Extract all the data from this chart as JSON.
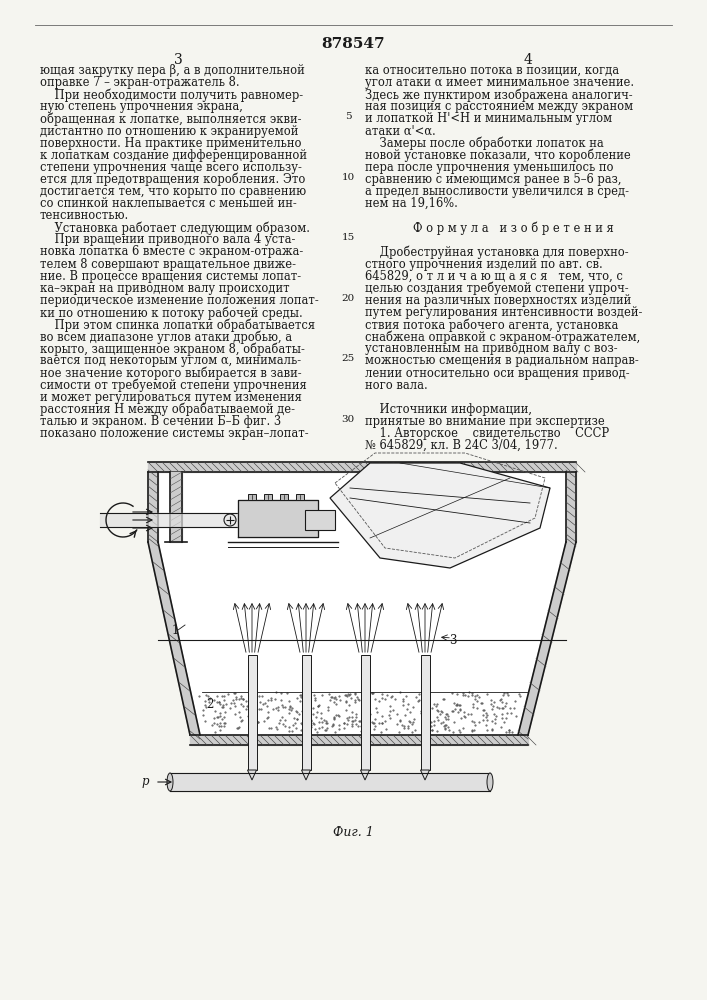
{
  "patent_number": "878547",
  "background_color": "#f5f5f0",
  "text_color": "#1a1a1a",
  "font_size_body": 8.3,
  "font_size_page_num": 10,
  "font_size_patent": 11,
  "left_col": [
    "ющая закрутку пера β, а в дополнительной",
    "оправке 7 – экран-отражатель 8.",
    "    При необходимости получить равномер-",
    "ную степень упрочнения экрана,",
    "обращенная к лопатке, выполняется экви-",
    "дистантно по отношению к экранируемой",
    "поверхности. На практике применительно",
    "к лопаткам создание дифференцированной",
    "степени упрочнения чаще всего использу-",
    "ется для предотвращения коробления. Это",
    "достигается тем, что корыто по сравнению",
    "со спинкой наклепывается с меньшей ин-",
    "тенсивностью.",
    "    Установка работает следующим образом.",
    "    При вращении приводного вала 4 уста-",
    "новка лопатка 6 вместе с экраном-отража-",
    "телем 8 совершают вращательное движе-",
    "ние. В процессе вращения системы лопат-",
    "ка–экран на приводном валу происходит",
    "периодическое изменение положения лопат-",
    "ки по отношению к потоку рабочей среды.",
    "    При этом спинка лопатки обрабатывается",
    "во всем диапазоне углов атаки дробью, а",
    "корыто, защищенное экраном 8, обрабаты-",
    "вается под некоторым углом α, минималь-",
    "ное значение которого выбирается в зави-",
    "симости от требуемой степени упрочнения",
    "и может регулироваться путем изменения",
    "расстояния H между обрабатываемой де-",
    "талью и экраном. В сечении Б–Б фиг. 3",
    "показано положение системы экран–лопат-"
  ],
  "right_col": [
    "ка относительно потока в позиции, когда",
    "угол атаки α имеет минимальное значение.",
    "Здесь же пунктиром изображена аналогич-",
    "ная позиция с расстоянием между экраном",
    "и лопаткой H'<H и минимальным углом",
    "атаки α'<α.",
    "    Замеры после обработки лопаток на",
    "новой установке показали, что коробление",
    "пера после упрочнения уменьшилось по",
    "сравнению с имеющимся ранее в 5–6 раз,",
    "а предел выносливости увеличился в сред-",
    "нем на 19,16%.",
    "",
    "Ф о р м у л а   и з о б р е т е н и я",
    "",
    "    Дробеструйная установка для поверхно-",
    "стного упрочнения изделий по авт. св.",
    "645829, о т л и ч а ю щ а я с я   тем, что, с",
    "целью создания требуемой степени упроч-",
    "нения на различных поверхностях изделий",
    "путем регулирования интенсивности воздей-",
    "ствия потока рабочего агента, установка",
    "снабжена оправкой с экраном-отражателем,",
    "установленным на приводном валу с воз-",
    "можностью смещения в радиальном направ-",
    "лении относительно оси вращения привод-",
    "ного вала.",
    "",
    "    Источники информации,",
    "принятые во внимание при экспертизе",
    "    1. Авторское    свидетельство    СССР",
    "№ 645829, кл. В 24С 3/04, 1977."
  ],
  "fig_caption": "Фиг. 1"
}
